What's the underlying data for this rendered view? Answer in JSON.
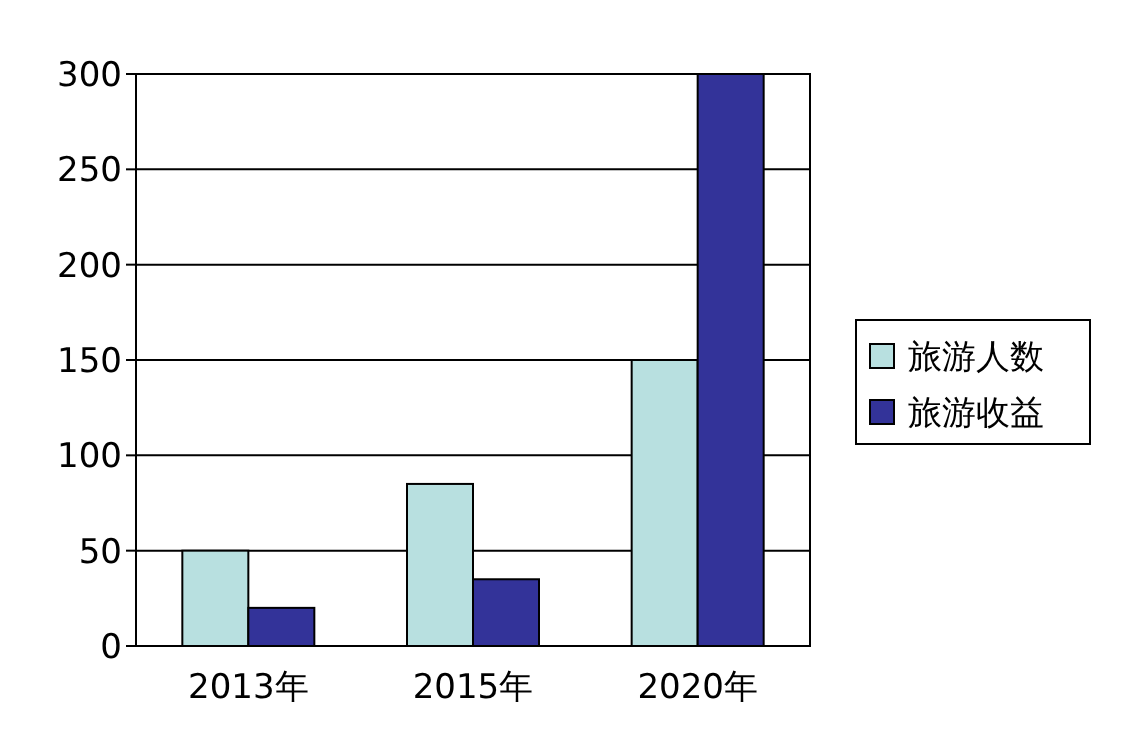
{
  "chart_data": {
    "type": "bar",
    "categories": [
      "2013年",
      "2015年",
      "2020年"
    ],
    "series": [
      {
        "name": "旅游人数",
        "color": "#b8e0e0",
        "values": [
          50,
          85,
          150
        ]
      },
      {
        "name": "旅游收益",
        "color": "#333399",
        "values": [
          20,
          35,
          300
        ]
      }
    ],
    "ylim": [
      0,
      300
    ],
    "yticks": [
      0,
      50,
      100,
      150,
      200,
      250,
      300
    ],
    "grid": "y",
    "legend": "right"
  }
}
